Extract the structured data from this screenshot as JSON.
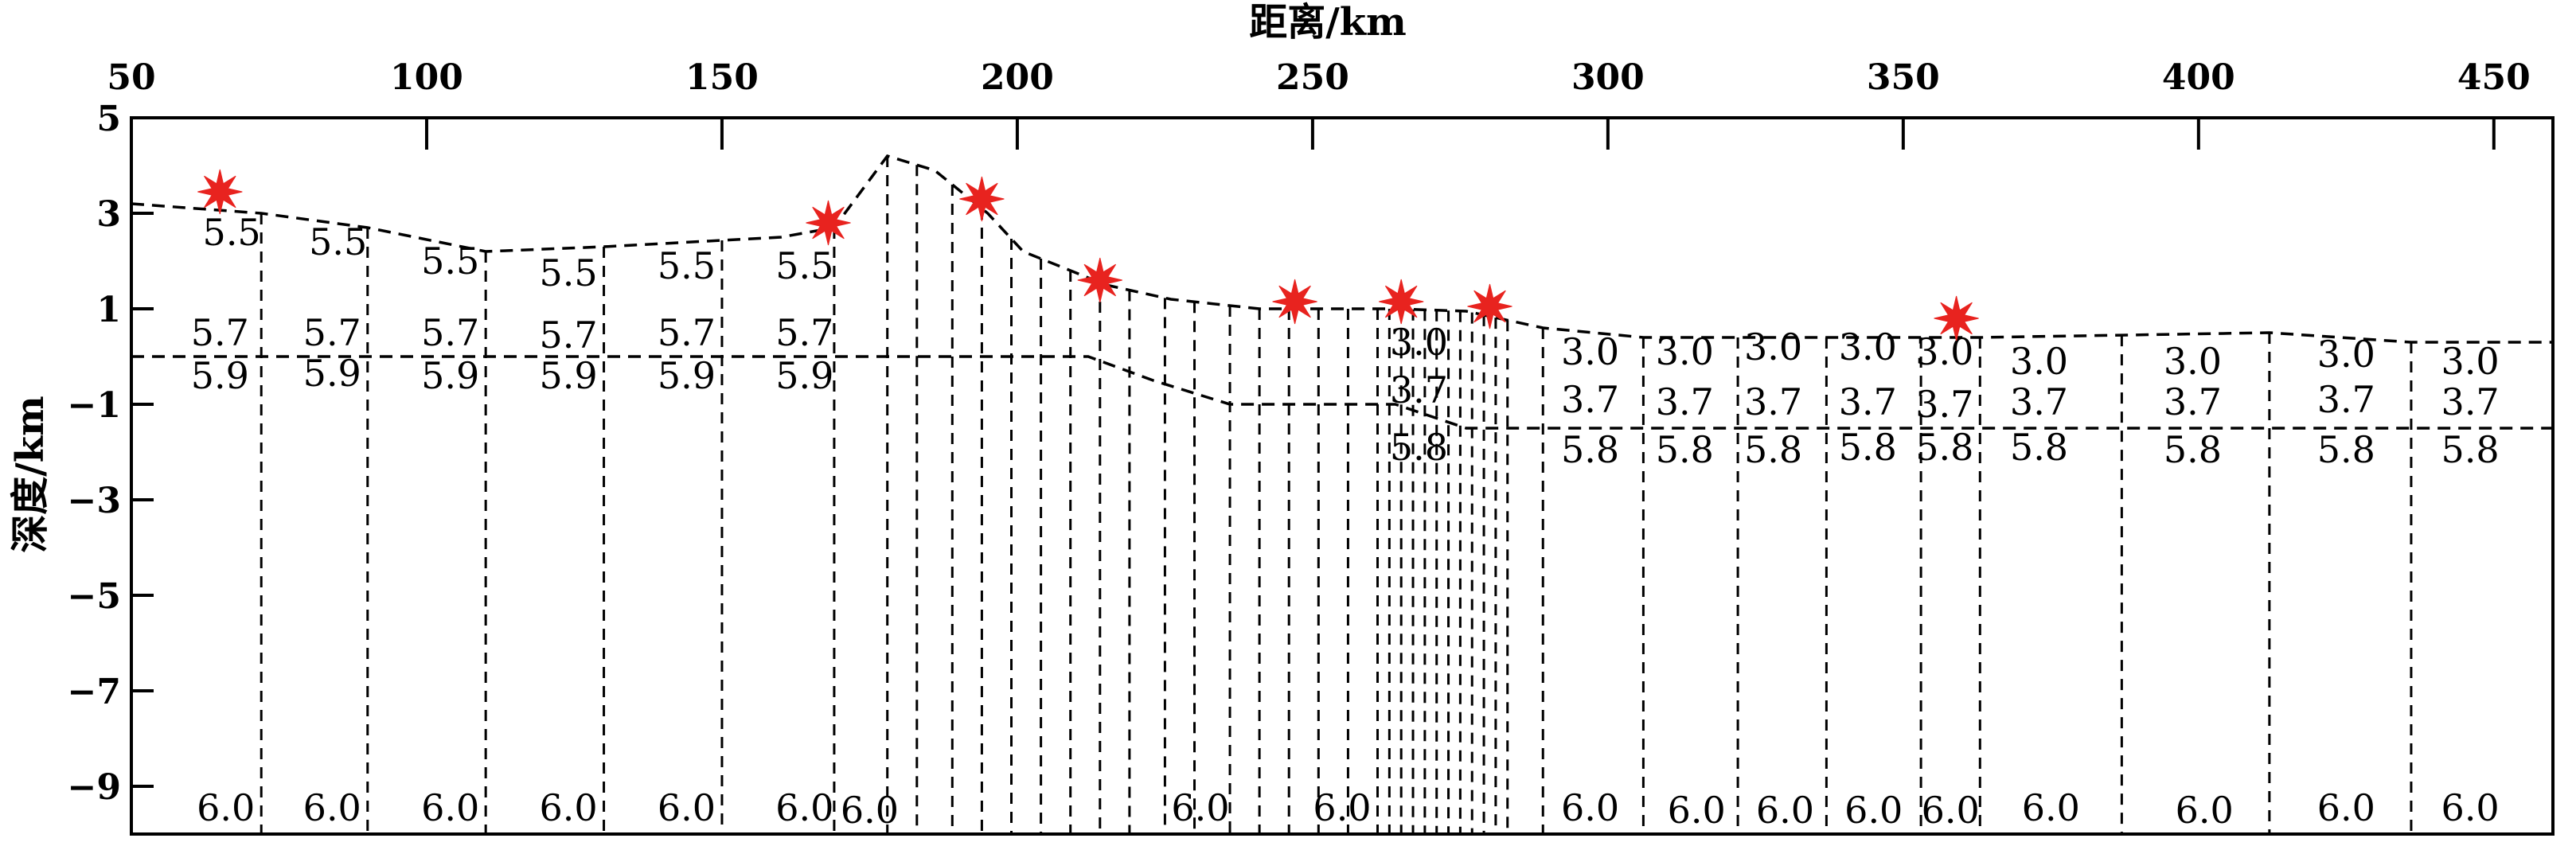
{
  "chart_data": {
    "type": "scatter",
    "title": "",
    "xlabel": "距离/km",
    "ylabel": "深度/km",
    "x_axis_position": "top",
    "xlim": [
      50,
      460
    ],
    "ylim": [
      -10,
      5
    ],
    "x_ticks": [
      50,
      100,
      150,
      200,
      250,
      300,
      350,
      400,
      450
    ],
    "x_tick_labels": [
      "50",
      "100",
      "150",
      "200",
      "250",
      "300",
      "350",
      "400",
      "450"
    ],
    "y_ticks": [
      5,
      3,
      1,
      -1,
      -3,
      -5,
      -7,
      -9
    ],
    "y_tick_labels": [
      "5",
      "3",
      "1",
      "−1",
      "−3",
      "−5",
      "−7",
      "−9"
    ],
    "grid": false,
    "line_style": "dashed",
    "marker_color": "#e8231f",
    "surface_boundary": [
      {
        "x": 50,
        "y": 3.2
      },
      {
        "x": 72,
        "y": 3.0
      },
      {
        "x": 90,
        "y": 2.7
      },
      {
        "x": 110,
        "y": 2.2
      },
      {
        "x": 130,
        "y": 2.3
      },
      {
        "x": 160,
        "y": 2.5
      },
      {
        "x": 169,
        "y": 2.7
      },
      {
        "x": 178,
        "y": 4.2
      },
      {
        "x": 186,
        "y": 3.9
      },
      {
        "x": 195,
        "y": 3.0
      },
      {
        "x": 201,
        "y": 2.2
      },
      {
        "x": 215,
        "y": 1.5
      },
      {
        "x": 226,
        "y": 1.2
      },
      {
        "x": 241,
        "y": 1.0
      },
      {
        "x": 256,
        "y": 1.0
      },
      {
        "x": 264,
        "y": 1.0
      },
      {
        "x": 276,
        "y": 0.95
      },
      {
        "x": 289,
        "y": 0.6
      },
      {
        "x": 306,
        "y": 0.4
      },
      {
        "x": 340,
        "y": 0.4
      },
      {
        "x": 363,
        "y": 0.4
      },
      {
        "x": 388,
        "y": 0.45
      },
      {
        "x": 412,
        "y": 0.5
      },
      {
        "x": 436,
        "y": 0.3
      },
      {
        "x": 460,
        "y": 0.3
      }
    ],
    "interface_boundary": [
      {
        "x": 50,
        "y": 0.0
      },
      {
        "x": 212,
        "y": 0.0
      },
      {
        "x": 223,
        "y": -0.5
      },
      {
        "x": 236,
        "y": -1.0
      },
      {
        "x": 264,
        "y": -1.0
      },
      {
        "x": 276,
        "y": -1.5
      },
      {
        "x": 460,
        "y": -1.5
      }
    ],
    "node_lines_x": [
      72,
      90,
      110,
      130,
      150,
      169,
      178,
      183,
      189,
      194,
      199,
      204,
      209,
      214,
      219,
      225,
      230,
      236,
      241,
      246,
      251,
      256,
      261,
      263,
      265,
      267,
      269,
      271,
      273,
      275,
      277,
      279,
      281,
      283,
      289,
      306,
      322,
      337,
      353,
      363,
      387,
      412,
      436
    ],
    "stations": [
      {
        "x": 65,
        "y": 3.45
      },
      {
        "x": 168,
        "y": 2.8
      },
      {
        "x": 194,
        "y": 3.3
      },
      {
        "x": 214,
        "y": 1.6
      },
      {
        "x": 247,
        "y": 1.15
      },
      {
        "x": 265,
        "y": 1.15
      },
      {
        "x": 280,
        "y": 1.05
      },
      {
        "x": 359,
        "y": 0.8
      }
    ],
    "velocity_labels": [
      {
        "x": 67,
        "y": 2.6,
        "text": "5.5"
      },
      {
        "x": 85,
        "y": 2.4,
        "text": "5.5"
      },
      {
        "x": 104,
        "y": 2.0,
        "text": "5.5"
      },
      {
        "x": 124,
        "y": 1.75,
        "text": "5.5"
      },
      {
        "x": 144,
        "y": 1.9,
        "text": "5.5"
      },
      {
        "x": 164,
        "y": 1.9,
        "text": "5.5"
      },
      {
        "x": 65,
        "y": 0.5,
        "text": "5.7"
      },
      {
        "x": 84,
        "y": 0.5,
        "text": "5.7"
      },
      {
        "x": 104,
        "y": 0.5,
        "text": "5.7"
      },
      {
        "x": 124,
        "y": 0.45,
        "text": "5.7"
      },
      {
        "x": 144,
        "y": 0.5,
        "text": "5.7"
      },
      {
        "x": 164,
        "y": 0.5,
        "text": "5.7"
      },
      {
        "x": 65,
        "y": -0.4,
        "text": "5.9"
      },
      {
        "x": 84,
        "y": -0.35,
        "text": "5.9"
      },
      {
        "x": 104,
        "y": -0.4,
        "text": "5.9"
      },
      {
        "x": 124,
        "y": -0.4,
        "text": "5.9"
      },
      {
        "x": 144,
        "y": -0.4,
        "text": "5.9"
      },
      {
        "x": 164,
        "y": -0.4,
        "text": "5.9"
      },
      {
        "x": 268,
        "y": 0.3,
        "text": "3.0"
      },
      {
        "x": 268,
        "y": -0.7,
        "text": "3.7"
      },
      {
        "x": 268,
        "y": -1.9,
        "text": "5.8"
      },
      {
        "x": 297,
        "y": 0.1,
        "text": "3.0"
      },
      {
        "x": 313,
        "y": 0.1,
        "text": "3.0"
      },
      {
        "x": 328,
        "y": 0.2,
        "text": "3.0"
      },
      {
        "x": 344,
        "y": 0.2,
        "text": "3.0"
      },
      {
        "x": 357,
        "y": 0.1,
        "text": "3.0"
      },
      {
        "x": 373,
        "y": -0.1,
        "text": "3.0"
      },
      {
        "x": 399,
        "y": -0.1,
        "text": "3.0"
      },
      {
        "x": 425,
        "y": 0.05,
        "text": "3.0"
      },
      {
        "x": 446,
        "y": -0.1,
        "text": "3.0"
      },
      {
        "x": 297,
        "y": -0.9,
        "text": "3.7"
      },
      {
        "x": 313,
        "y": -0.95,
        "text": "3.7"
      },
      {
        "x": 328,
        "y": -0.95,
        "text": "3.7"
      },
      {
        "x": 344,
        "y": -0.95,
        "text": "3.7"
      },
      {
        "x": 357,
        "y": -1.0,
        "text": "3.7"
      },
      {
        "x": 373,
        "y": -0.95,
        "text": "3.7"
      },
      {
        "x": 399,
        "y": -0.95,
        "text": "3.7"
      },
      {
        "x": 425,
        "y": -0.9,
        "text": "3.7"
      },
      {
        "x": 446,
        "y": -0.95,
        "text": "3.7"
      },
      {
        "x": 297,
        "y": -1.95,
        "text": "5.8"
      },
      {
        "x": 313,
        "y": -1.95,
        "text": "5.8"
      },
      {
        "x": 328,
        "y": -1.95,
        "text": "5.8"
      },
      {
        "x": 344,
        "y": -1.9,
        "text": "5.8"
      },
      {
        "x": 357,
        "y": -1.9,
        "text": "5.8"
      },
      {
        "x": 373,
        "y": -1.9,
        "text": "5.8"
      },
      {
        "x": 399,
        "y": -1.95,
        "text": "5.8"
      },
      {
        "x": 425,
        "y": -1.95,
        "text": "5.8"
      },
      {
        "x": 446,
        "y": -1.95,
        "text": "5.8"
      },
      {
        "x": 66,
        "y": -9.45,
        "text": "6.0"
      },
      {
        "x": 84,
        "y": -9.45,
        "text": "6.0"
      },
      {
        "x": 104,
        "y": -9.45,
        "text": "6.0"
      },
      {
        "x": 124,
        "y": -9.45,
        "text": "6.0"
      },
      {
        "x": 144,
        "y": -9.45,
        "text": "6.0"
      },
      {
        "x": 164,
        "y": -9.45,
        "text": "6.0"
      },
      {
        "x": 175,
        "y": -9.5,
        "text": "6.0"
      },
      {
        "x": 231,
        "y": -9.45,
        "text": "6.0"
      },
      {
        "x": 255,
        "y": -9.45,
        "text": "6.0"
      },
      {
        "x": 297,
        "y": -9.45,
        "text": "6.0"
      },
      {
        "x": 315,
        "y": -9.5,
        "text": "6.0"
      },
      {
        "x": 330,
        "y": -9.5,
        "text": "6.0"
      },
      {
        "x": 345,
        "y": -9.5,
        "text": "6.0"
      },
      {
        "x": 358,
        "y": -9.5,
        "text": "6.0"
      },
      {
        "x": 375,
        "y": -9.45,
        "text": "6.0"
      },
      {
        "x": 401,
        "y": -9.5,
        "text": "6.0"
      },
      {
        "x": 425,
        "y": -9.45,
        "text": "6.0"
      },
      {
        "x": 446,
        "y": -9.45,
        "text": "6.0"
      }
    ]
  }
}
